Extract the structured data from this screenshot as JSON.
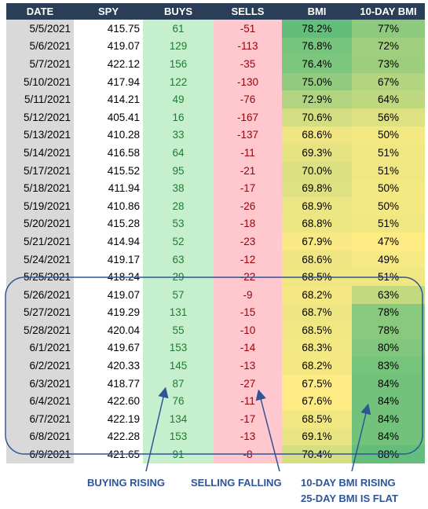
{
  "headers": [
    "DATE",
    "SPY",
    "BUYS",
    "SELLS",
    "BMI",
    "10-DAY BMI"
  ],
  "rows": [
    {
      "date": "5/5/2021",
      "spy": "415.75",
      "buys": "61",
      "sells": "-51",
      "bmi": "78.2%",
      "bmi10": "77%"
    },
    {
      "date": "5/6/2021",
      "spy": "419.07",
      "buys": "129",
      "sells": "-113",
      "bmi": "76.8%",
      "bmi10": "72%"
    },
    {
      "date": "5/7/2021",
      "spy": "422.12",
      "buys": "156",
      "sells": "-35",
      "bmi": "76.4%",
      "bmi10": "73%"
    },
    {
      "date": "5/10/2021",
      "spy": "417.94",
      "buys": "122",
      "sells": "-130",
      "bmi": "75.0%",
      "bmi10": "67%"
    },
    {
      "date": "5/11/2021",
      "spy": "414.21",
      "buys": "49",
      "sells": "-76",
      "bmi": "72.9%",
      "bmi10": "64%"
    },
    {
      "date": "5/12/2021",
      "spy": "405.41",
      "buys": "16",
      "sells": "-167",
      "bmi": "70.6%",
      "bmi10": "56%"
    },
    {
      "date": "5/13/2021",
      "spy": "410.28",
      "buys": "33",
      "sells": "-137",
      "bmi": "68.6%",
      "bmi10": "50%"
    },
    {
      "date": "5/14/2021",
      "spy": "416.58",
      "buys": "64",
      "sells": "-11",
      "bmi": "69.3%",
      "bmi10": "51%"
    },
    {
      "date": "5/17/2021",
      "spy": "415.52",
      "buys": "95",
      "sells": "-21",
      "bmi": "70.0%",
      "bmi10": "51%"
    },
    {
      "date": "5/18/2021",
      "spy": "411.94",
      "buys": "38",
      "sells": "-17",
      "bmi": "69.8%",
      "bmi10": "50%"
    },
    {
      "date": "5/19/2021",
      "spy": "410.86",
      "buys": "28",
      "sells": "-26",
      "bmi": "68.9%",
      "bmi10": "50%"
    },
    {
      "date": "5/20/2021",
      "spy": "415.28",
      "buys": "53",
      "sells": "-18",
      "bmi": "68.8%",
      "bmi10": "51%"
    },
    {
      "date": "5/21/2021",
      "spy": "414.94",
      "buys": "52",
      "sells": "-23",
      "bmi": "67.9%",
      "bmi10": "47%"
    },
    {
      "date": "5/24/2021",
      "spy": "419.17",
      "buys": "63",
      "sells": "-12",
      "bmi": "68.6%",
      "bmi10": "49%"
    },
    {
      "date": "5/25/2021",
      "spy": "418.24",
      "buys": "29",
      "sells": "-22",
      "bmi": "68.5%",
      "bmi10": "51%"
    },
    {
      "date": "5/26/2021",
      "spy": "419.07",
      "buys": "57",
      "sells": "-9",
      "bmi": "68.2%",
      "bmi10": "63%"
    },
    {
      "date": "5/27/2021",
      "spy": "419.29",
      "buys": "131",
      "sells": "-15",
      "bmi": "68.7%",
      "bmi10": "78%"
    },
    {
      "date": "5/28/2021",
      "spy": "420.04",
      "buys": "55",
      "sells": "-10",
      "bmi": "68.5%",
      "bmi10": "78%"
    },
    {
      "date": "6/1/2021",
      "spy": "419.67",
      "buys": "153",
      "sells": "-14",
      "bmi": "68.3%",
      "bmi10": "80%"
    },
    {
      "date": "6/2/2021",
      "spy": "420.33",
      "buys": "145",
      "sells": "-13",
      "bmi": "68.2%",
      "bmi10": "83%"
    },
    {
      "date": "6/3/2021",
      "spy": "418.77",
      "buys": "87",
      "sells": "-27",
      "bmi": "67.5%",
      "bmi10": "84%"
    },
    {
      "date": "6/4/2021",
      "spy": "422.60",
      "buys": "76",
      "sells": "-11",
      "bmi": "67.6%",
      "bmi10": "84%"
    },
    {
      "date": "6/7/2021",
      "spy": "422.19",
      "buys": "134",
      "sells": "-17",
      "bmi": "68.5%",
      "bmi10": "84%"
    },
    {
      "date": "6/8/2021",
      "spy": "422.28",
      "buys": "153",
      "sells": "-13",
      "bmi": "69.1%",
      "bmi10": "84%"
    },
    {
      "date": "6/9/2021",
      "spy": "421.65",
      "buys": "91",
      "sells": "-8",
      "bmi": "70.4%",
      "bmi10": "88%"
    }
  ],
  "annotations": {
    "buying": "BUYING RISING",
    "selling": "SELLING FALLING",
    "bmi_line1": "10-DAY BMI RISING",
    "bmi_line2": "25-DAY BMI IS FLAT"
  },
  "colors": {
    "header_bg": "#2b3e57",
    "date_bg": "#d9d9d9",
    "buys_bg": "#c6efce",
    "buys_text": "#1e7d32",
    "sells_bg": "#ffc7ce",
    "sells_text": "#9c0006",
    "annotation": "#2f5597"
  }
}
